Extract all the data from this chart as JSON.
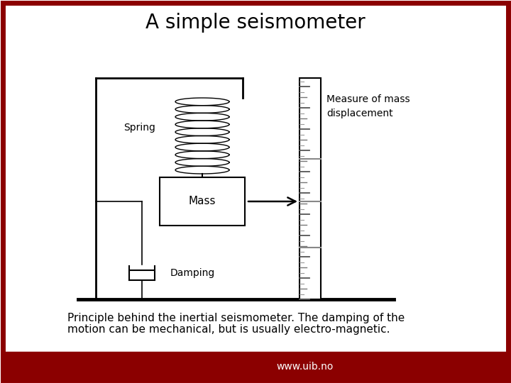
{
  "title": "A simple seismometer",
  "caption_line1": "Principle behind the inertial seismometer. The damping of the",
  "caption_line2": "motion can be mechanical, but is usually electro-magnetic.",
  "bg_color": "#ffffff",
  "border_color": "#8B0000",
  "footer_color": "#8B0000",
  "footer_text": "www.uib.no",
  "title_fontsize": 20,
  "caption_fontsize": 11,
  "label_spring": "Spring",
  "label_mass": "Mass",
  "label_damping": "Damping",
  "label_measure": "Measure of mass\ndisplacement"
}
